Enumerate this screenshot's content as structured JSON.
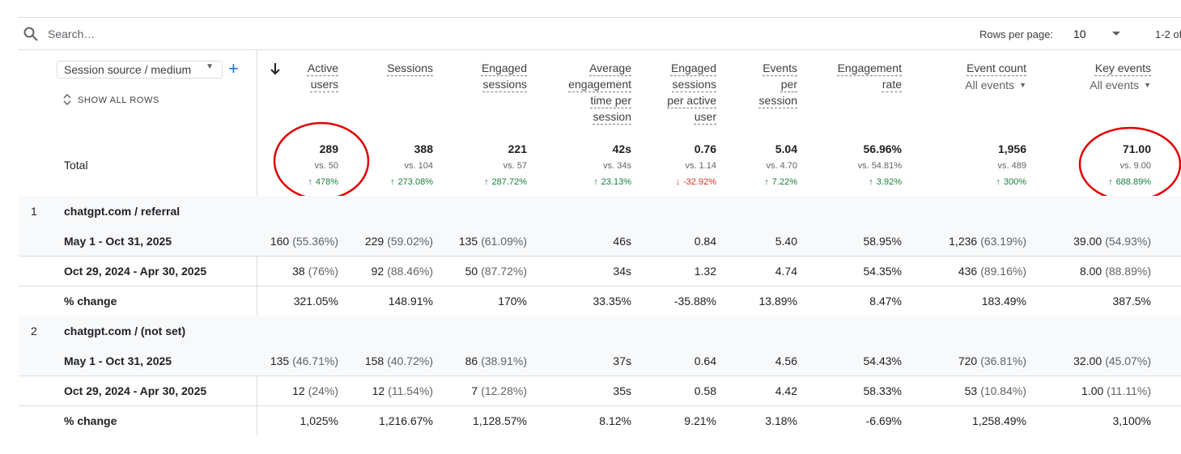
{
  "toolbar": {
    "search_placeholder": "Search…",
    "rows_per_page_label": "Rows per page:",
    "rows_per_page": "10",
    "pagination": "1-2 of"
  },
  "dimension": {
    "selector": "Session source / medium",
    "show_all_rows": "SHOW ALL ROWS",
    "total_label": "Total"
  },
  "columns": [
    {
      "label": "Active users",
      "total": {
        "value": "289",
        "vs": "vs. 50",
        "change": "478%",
        "trend": "up"
      }
    },
    {
      "label": "Sessions",
      "total": {
        "value": "388",
        "vs": "vs. 104",
        "change": "273.08%",
        "trend": "up"
      }
    },
    {
      "label": "Engaged sessions",
      "total": {
        "value": "221",
        "vs": "vs. 57",
        "change": "287.72%",
        "trend": "up"
      }
    },
    {
      "label": "Average engagement time per session",
      "total": {
        "value": "42s",
        "vs": "vs. 34s",
        "change": "23.13%",
        "trend": "up"
      }
    },
    {
      "label": "Engaged sessions per active user",
      "total": {
        "value": "0.76",
        "vs": "vs. 1.14",
        "change": "-32.92%",
        "trend": "down"
      }
    },
    {
      "label": "Events per session",
      "total": {
        "value": "5.04",
        "vs": "vs. 4.70",
        "change": "7.22%",
        "trend": "up"
      }
    },
    {
      "label": "Engagement rate",
      "total": {
        "value": "56.96%",
        "vs": "vs. 54.81%",
        "change": "3.92%",
        "trend": "up"
      }
    },
    {
      "label": "Event count",
      "filter": "All events",
      "total": {
        "value": "1,956",
        "vs": "vs. 489",
        "change": "300%",
        "trend": "up"
      }
    },
    {
      "label": "Key events",
      "filter": "All events",
      "total": {
        "value": "71.00",
        "vs": "vs. 9.00",
        "change": "688.89%",
        "trend": "up"
      }
    }
  ],
  "groups": [
    {
      "index": "1",
      "name": "chatgpt.com / referral",
      "rows": [
        {
          "label": "May 1 - Oct 31, 2025",
          "cells": [
            {
              "v": "160",
              "p": "(55.36%)"
            },
            {
              "v": "229",
              "p": "(59.02%)"
            },
            {
              "v": "135",
              "p": "(61.09%)"
            },
            {
              "v": "46s"
            },
            {
              "v": "0.84"
            },
            {
              "v": "5.40"
            },
            {
              "v": "58.95%"
            },
            {
              "v": "1,236",
              "p": "(63.19%)"
            },
            {
              "v": "39.00",
              "p": "(54.93%)"
            }
          ]
        },
        {
          "label": "Oct 29, 2024 - Apr 30, 2025",
          "cells": [
            {
              "v": "38",
              "p": "(76%)"
            },
            {
              "v": "92",
              "p": "(88.46%)"
            },
            {
              "v": "50",
              "p": "(87.72%)"
            },
            {
              "v": "34s"
            },
            {
              "v": "1.32"
            },
            {
              "v": "4.74"
            },
            {
              "v": "54.35%"
            },
            {
              "v": "436",
              "p": "(89.16%)"
            },
            {
              "v": "8.00",
              "p": "(88.89%)"
            }
          ]
        },
        {
          "label": "% change",
          "cells": [
            {
              "v": "321.05%"
            },
            {
              "v": "148.91%"
            },
            {
              "v": "170%"
            },
            {
              "v": "33.35%"
            },
            {
              "v": "-35.88%"
            },
            {
              "v": "13.89%"
            },
            {
              "v": "8.47%"
            },
            {
              "v": "183.49%"
            },
            {
              "v": "387.5%"
            }
          ]
        }
      ]
    },
    {
      "index": "2",
      "name": "chatgpt.com / (not set)",
      "rows": [
        {
          "label": "May 1 - Oct 31, 2025",
          "cells": [
            {
              "v": "135",
              "p": "(46.71%)"
            },
            {
              "v": "158",
              "p": "(40.72%)"
            },
            {
              "v": "86",
              "p": "(38.91%)"
            },
            {
              "v": "37s"
            },
            {
              "v": "0.64"
            },
            {
              "v": "4.56"
            },
            {
              "v": "54.43%"
            },
            {
              "v": "720",
              "p": "(36.81%)"
            },
            {
              "v": "32.00",
              "p": "(45.07%)"
            }
          ]
        },
        {
          "label": "Oct 29, 2024 - Apr 30, 2025",
          "cells": [
            {
              "v": "12",
              "p": "(24%)"
            },
            {
              "v": "12",
              "p": "(11.54%)"
            },
            {
              "v": "7",
              "p": "(12.28%)"
            },
            {
              "v": "35s"
            },
            {
              "v": "0.58"
            },
            {
              "v": "4.42"
            },
            {
              "v": "58.33%"
            },
            {
              "v": "53",
              "p": "(10.84%)"
            },
            {
              "v": "1.00",
              "p": "(11.11%)"
            }
          ]
        },
        {
          "label": "% change",
          "cells": [
            {
              "v": "1,025%"
            },
            {
              "v": "1,216.67%"
            },
            {
              "v": "1,128.57%"
            },
            {
              "v": "8.12%"
            },
            {
              "v": "9.21%"
            },
            {
              "v": "3.18%"
            },
            {
              "v": "-6.69%"
            },
            {
              "v": "1,258.49%"
            },
            {
              "v": "3,100%"
            }
          ]
        }
      ]
    }
  ]
}
